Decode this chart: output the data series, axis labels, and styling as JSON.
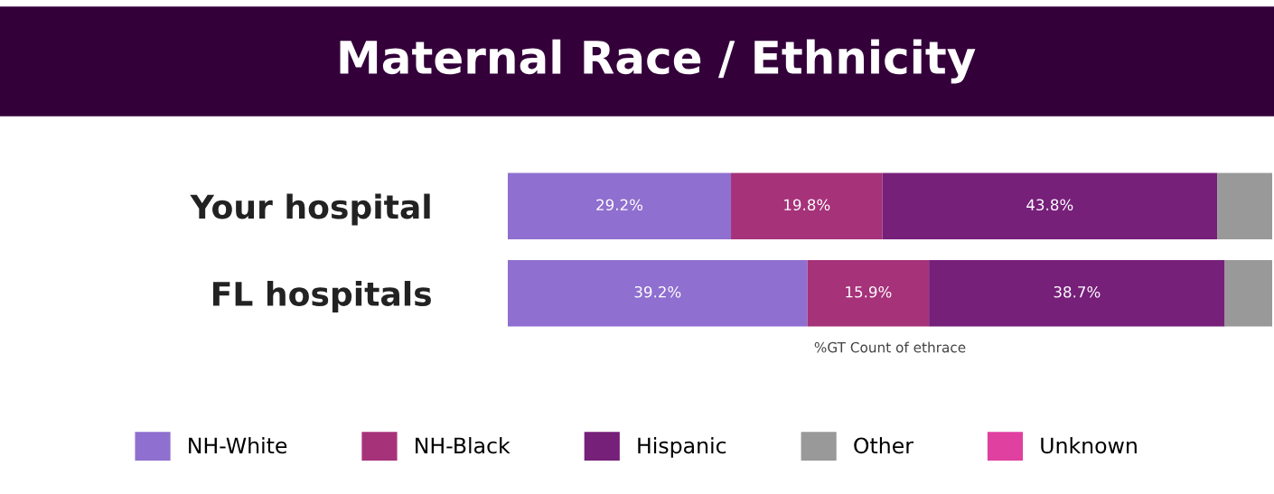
{
  "chart_data": {
    "type": "bar",
    "orientation": "horizontal",
    "stacked": true,
    "title": "Maternal Race / Ethnicity",
    "xlabel": "%GT Count of ethrace",
    "categories": [
      "Your hospital",
      "FL hospitals"
    ],
    "series": [
      {
        "name": "NH-White",
        "color": "#8f6fcf",
        "values": [
          29.2,
          39.2
        ],
        "value_labels": [
          "29.2%",
          "39.2%"
        ]
      },
      {
        "name": "NH-Black",
        "color": "#a6327a",
        "values": [
          19.8,
          15.9
        ],
        "value_labels": [
          "19.8%",
          "15.9%"
        ]
      },
      {
        "name": "Hispanic",
        "color": "#76207a",
        "values": [
          43.8,
          38.7
        ],
        "value_labels": [
          "43.8%",
          "38.7%"
        ]
      },
      {
        "name": "Other",
        "color": "#999999",
        "values": [
          7.2,
          6.2
        ],
        "value_labels": [
          null,
          null
        ]
      },
      {
        "name": "Unknown",
        "color": "#e040a0",
        "values": [
          null,
          null
        ],
        "value_labels": [
          null,
          null
        ]
      }
    ],
    "xlim": [
      0,
      100
    ],
    "tick_labels": "y",
    "legend": "bottom",
    "grid": false
  }
}
